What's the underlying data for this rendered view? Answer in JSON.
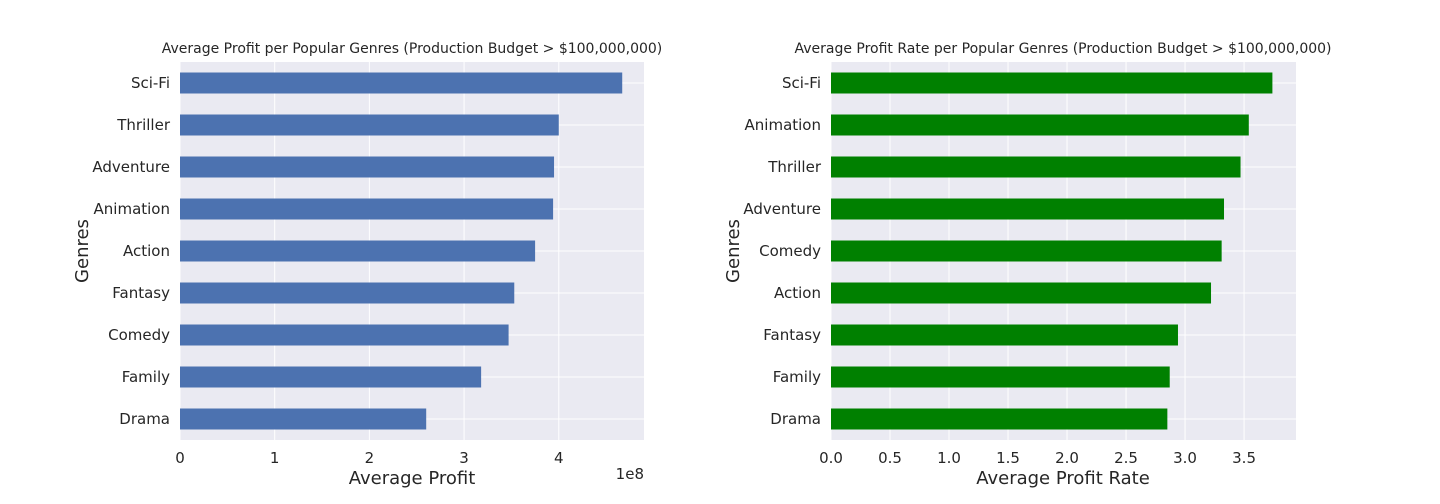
{
  "chart_data": [
    {
      "type": "bar",
      "orientation": "horizontal",
      "title": "Average Profit per Popular Genres (Production Budget > $100,000,000)",
      "xlabel": "Average Profit",
      "ylabel": "Genres",
      "x_offset_label": "1e8",
      "x_scale": 100000000,
      "x_ticks": [
        "0",
        "1",
        "2",
        "3",
        "4"
      ],
      "xlim": [
        0,
        490000000
      ],
      "categories": [
        "Drama",
        "Family",
        "Comedy",
        "Fantasy",
        "Action",
        "Animation",
        "Adventure",
        "Thriller",
        "Sci-Fi"
      ],
      "values": [
        260000000,
        318000000,
        347000000,
        353000000,
        375000000,
        394000000,
        395000000,
        400000000,
        467000000
      ],
      "color": "#4c72b0",
      "grid": true
    },
    {
      "type": "bar",
      "orientation": "horizontal",
      "title": "Average Profit Rate per Popular Genres (Production Budget > $100,000,000)",
      "xlabel": "Average Profit Rate",
      "ylabel": "Genres",
      "x_ticks": [
        "0.0",
        "0.5",
        "1.0",
        "1.5",
        "2.0",
        "2.5",
        "3.0",
        "3.5"
      ],
      "xlim": [
        0,
        3.94
      ],
      "categories": [
        "Drama",
        "Family",
        "Fantasy",
        "Action",
        "Comedy",
        "Adventure",
        "Thriller",
        "Animation",
        "Sci-Fi"
      ],
      "values": [
        2.85,
        2.87,
        2.94,
        3.22,
        3.31,
        3.33,
        3.47,
        3.54,
        3.74
      ],
      "color": "#008000",
      "grid": true
    }
  ]
}
